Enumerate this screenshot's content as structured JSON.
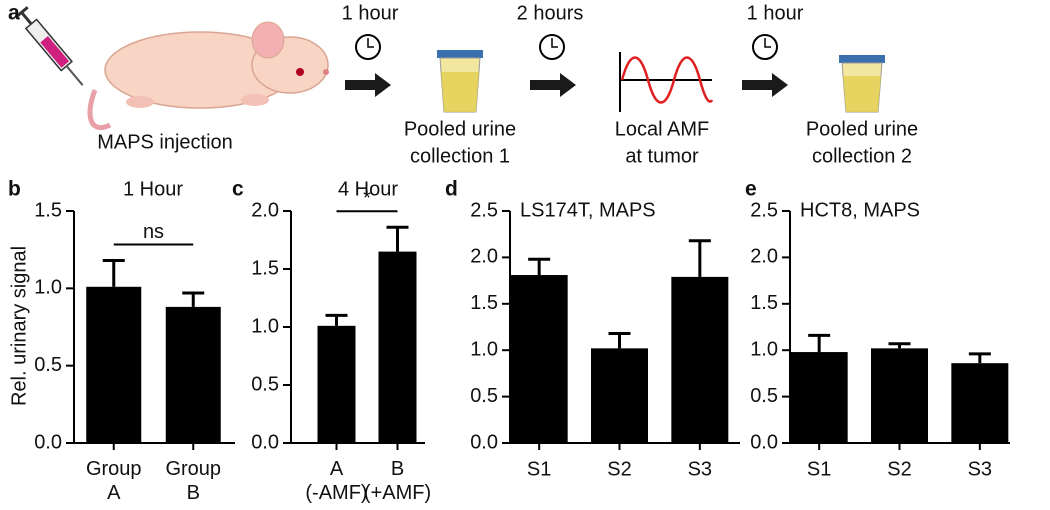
{
  "diagram": {
    "panel_label": "a",
    "start": "MAPS injection",
    "intervals": [
      "1 hour",
      "2 hours",
      "1 hour"
    ],
    "stages": [
      [
        "Pooled urine",
        "collection 1"
      ],
      [
        "Local AMF",
        "at tumor"
      ],
      [
        "Pooled urine",
        "collection 2"
      ]
    ]
  },
  "chart_data": [
    {
      "type": "bar",
      "panel_label": "b",
      "title": "1 Hour",
      "y_label": "Rel. urinary signal",
      "categories": [
        "Group A",
        "Group B"
      ],
      "values": [
        1.01,
        0.88
      ],
      "errors": [
        0.17,
        0.09
      ],
      "color": "#000000",
      "ylim": [
        0,
        1.5
      ],
      "yticks": [
        {
          "value": 0,
          "label": "0.0"
        },
        {
          "value": 0.5,
          "label": "0.5"
        },
        {
          "value": 1,
          "label": "1.0"
        },
        {
          "value": 1.5,
          "label": "1.5"
        }
      ],
      "annotation": "ns"
    },
    {
      "type": "bar",
      "panel_label": "c",
      "title": "4 Hour",
      "categories": [
        "A (-AMF)",
        "B (+AMF)"
      ],
      "values": [
        1.01,
        1.65
      ],
      "errors": [
        0.09,
        0.21
      ],
      "color": "#000000",
      "ylim": [
        0,
        2
      ],
      "yticks": [
        {
          "value": 0,
          "label": "0.0"
        },
        {
          "value": 0.5,
          "label": "0.5"
        },
        {
          "value": 1,
          "label": "1.0"
        },
        {
          "value": 1.5,
          "label": "1.5"
        },
        {
          "value": 2,
          "label": "2.0"
        }
      ],
      "annotation": "*"
    },
    {
      "type": "bar",
      "panel_label": "d",
      "title": "LS174T, MAPS",
      "categories": [
        "S1",
        "S2",
        "S3"
      ],
      "values": [
        1.81,
        1.02,
        1.79
      ],
      "errors": [
        0.17,
        0.16,
        0.39
      ],
      "color": "#000000",
      "ylim": [
        0,
        2.5
      ],
      "yticks": [
        {
          "value": 0,
          "label": "0.0"
        },
        {
          "value": 0.5,
          "label": "0.5"
        },
        {
          "value": 1,
          "label": "1.0"
        },
        {
          "value": 1.5,
          "label": "1.5"
        },
        {
          "value": 2,
          "label": "2.0"
        },
        {
          "value": 2.5,
          "label": "2.5"
        }
      ]
    },
    {
      "type": "bar",
      "panel_label": "e",
      "title": "HCT8, MAPS",
      "categories": [
        "S1",
        "S2",
        "S3"
      ],
      "values": [
        0.98,
        1.02,
        0.86
      ],
      "errors": [
        0.18,
        0.05,
        0.1
      ],
      "color": "#000000",
      "ylim": [
        0,
        2.5
      ],
      "yticks": [
        {
          "value": 0,
          "label": "0.0"
        },
        {
          "value": 0.5,
          "label": "0.5"
        },
        {
          "value": 1,
          "label": "1.0"
        },
        {
          "value": 1.5,
          "label": "1.5"
        },
        {
          "value": 2,
          "label": "2.0"
        },
        {
          "value": 2.5,
          "label": "2.5"
        }
      ]
    }
  ]
}
